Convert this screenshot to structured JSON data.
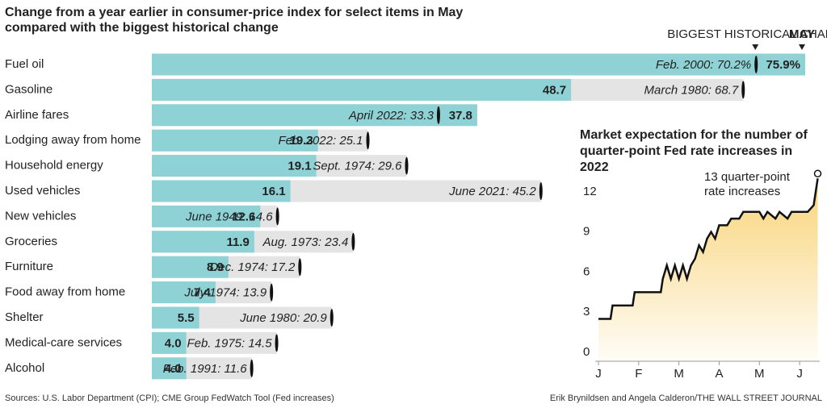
{
  "chart_data": [
    {
      "type": "bar",
      "orientation": "horizontal",
      "title": "Change from a year earlier in consumer-price index for select items in May compared with the biggest historical change",
      "categories": [
        "Fuel oil",
        "Gasoline",
        "Airline fares",
        "Lodging away from home",
        "Household energy",
        "Used vehicles",
        "New vehicles",
        "Groceries",
        "Furniture",
        "Food away from home",
        "Shelter",
        "Medical-care services",
        "Alcohol"
      ],
      "series": [
        {
          "name": "BIGGEST HISTORICAL CHANGE",
          "color": "#e4e4e4",
          "marker_color": "#111111",
          "values": [
            70.2,
            68.7,
            33.3,
            25.1,
            29.6,
            45.2,
            14.6,
            23.4,
            17.2,
            13.9,
            20.9,
            14.5,
            11.6
          ],
          "value_labels": [
            "Feb. 2000: 70.2%",
            "March 1980: 68.7",
            "April 2022: 33.3",
            "Feb. 2022: 25.1",
            "Sept. 1974: 29.6",
            "June 2021: 45.2",
            "June 1949: 14.6",
            "Aug. 1973: 23.4",
            "Dec. 1974: 17.2",
            "July 1974: 13.9",
            "June 1980: 20.9",
            "Feb. 1975: 14.5",
            "Feb. 1991: 11.6"
          ]
        },
        {
          "name": "MAY",
          "color": "#8ed2d5",
          "values": [
            75.9,
            48.7,
            37.8,
            19.3,
            19.1,
            16.1,
            12.6,
            11.9,
            8.9,
            7.4,
            5.5,
            4.0,
            4.0
          ],
          "value_labels": [
            "75.9%",
            "48.7",
            "37.8",
            "19.3",
            "19.1",
            "16.1",
            "12.6",
            "11.9",
            "8.9",
            "7.4",
            "5.5",
            "4.0",
            "4.0"
          ]
        }
      ],
      "source": "Sources: U.S. Labor Department (CPI); CME Group FedWatch Tool (Fed increases)",
      "credit": "Erik Brynildsen and Angela Calderon/THE WALL STREET JOURNAL"
    },
    {
      "type": "line",
      "title": "Market expectation for the number of quarter-point Fed rate increases in 2022",
      "annotation": "13 quarter-point rate increases",
      "xlim": [
        0,
        5.5
      ],
      "xticks": [
        {
          "value": 0,
          "label": "J"
        },
        {
          "value": 1,
          "label": "F"
        },
        {
          "value": 2,
          "label": "M"
        },
        {
          "value": 3,
          "label": "A"
        },
        {
          "value": 4,
          "label": "M"
        },
        {
          "value": 5,
          "label": "J"
        }
      ],
      "ylim": [
        0,
        13.5
      ],
      "yticks": [
        0,
        3,
        6,
        9,
        12
      ],
      "area_color": "#f8cf6a",
      "x": [
        0,
        0.3,
        0.35,
        0.85,
        0.9,
        1.55,
        1.6,
        1.7,
        1.8,
        1.9,
        2.0,
        2.1,
        2.2,
        2.3,
        2.4,
        2.5,
        2.6,
        2.7,
        2.8,
        2.9,
        3.0,
        3.2,
        3.3,
        3.5,
        3.6,
        3.8,
        4.0,
        4.1,
        4.2,
        4.4,
        4.5,
        4.7,
        4.8,
        5.0,
        5.2,
        5.35,
        5.45
      ],
      "series": [
        {
          "name": "Rate increases",
          "color": "#111111",
          "values": [
            2.5,
            2.5,
            3.5,
            3.5,
            4.5,
            4.5,
            5.5,
            6.5,
            5.5,
            6.5,
            5.5,
            6.5,
            5.5,
            6.5,
            7,
            8,
            7.5,
            8.5,
            9,
            8.5,
            9.5,
            9.5,
            10,
            10,
            10.5,
            10.5,
            10.5,
            10,
            10.5,
            10,
            10.5,
            10,
            10.5,
            10.5,
            10.5,
            11,
            13
          ]
        }
      ]
    }
  ]
}
